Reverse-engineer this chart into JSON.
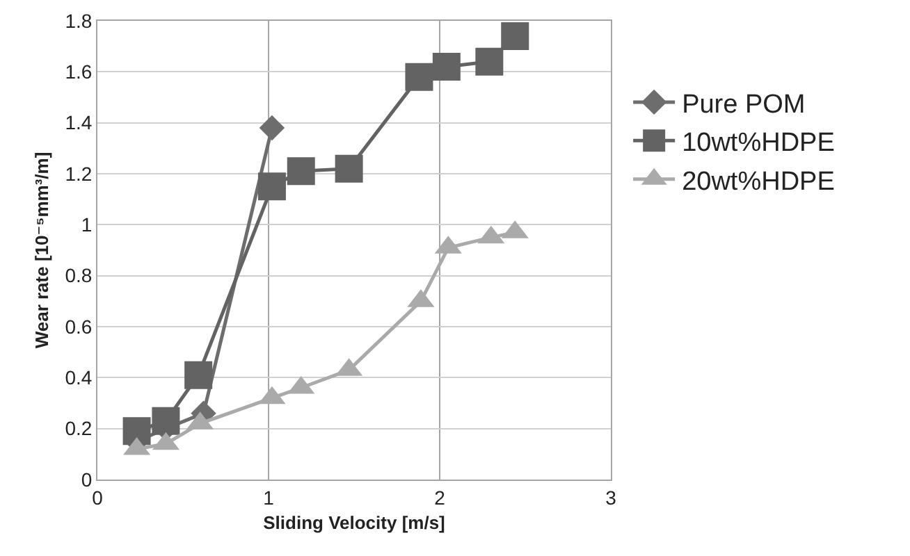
{
  "chart_data": {
    "type": "line",
    "xlabel": "Sliding Velocity [m/s]",
    "ylabel": "Wear rate [10⁻⁵mm³/m]",
    "series": [
      {
        "name": "Pure POM",
        "color": "#6d6d6d",
        "marker": "diamond",
        "x": [
          0.23,
          0.4,
          0.62,
          1.02
        ],
        "values": [
          0.15,
          0.2,
          0.26,
          1.38
        ]
      },
      {
        "name": "10wt%HDPE",
        "color": "#636363",
        "marker": "square",
        "x": [
          0.23,
          0.4,
          0.59,
          1.02,
          1.19,
          1.47,
          1.88,
          2.04,
          2.29,
          2.44
        ],
        "values": [
          0.19,
          0.23,
          0.41,
          1.15,
          1.21,
          1.22,
          1.58,
          1.62,
          1.64,
          1.74
        ]
      },
      {
        "name": "20wt%HDPE",
        "color": "#aaaaaa",
        "marker": "triangle",
        "x": [
          0.23,
          0.4,
          0.6,
          1.02,
          1.19,
          1.47,
          1.89,
          2.05,
          2.3,
          2.44
        ],
        "values": [
          0.12,
          0.14,
          0.22,
          0.32,
          0.36,
          0.43,
          0.7,
          0.91,
          0.95,
          0.97
        ]
      }
    ],
    "xlim": [
      0,
      3
    ],
    "xticks": [
      0,
      1,
      2,
      3
    ],
    "ylim": [
      0,
      1.8
    ],
    "yticks": [
      0,
      0.2,
      0.4,
      0.6,
      0.8,
      1,
      1.2,
      1.4,
      1.6,
      1.8
    ],
    "grid": true,
    "legend": "right",
    "line_style": "solid"
  }
}
